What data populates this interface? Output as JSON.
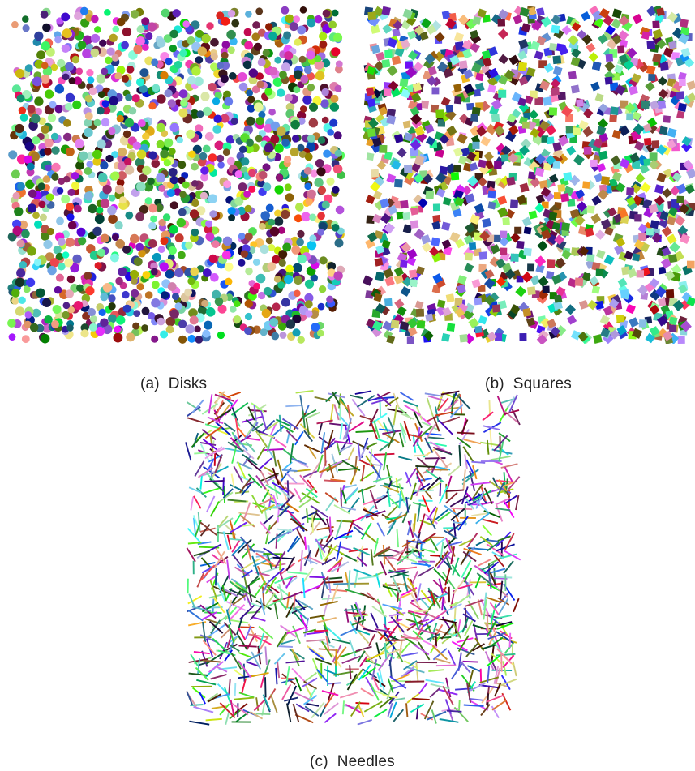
{
  "figure": {
    "panels": [
      {
        "label": "(a)",
        "name": "Disks",
        "shape": "disk",
        "count": 1500
      },
      {
        "label": "(b)",
        "name": "Squares",
        "shape": "square",
        "count": 1300
      },
      {
        "label": "(c)",
        "name": "Needles",
        "shape": "needle",
        "count": 1400
      }
    ]
  }
}
